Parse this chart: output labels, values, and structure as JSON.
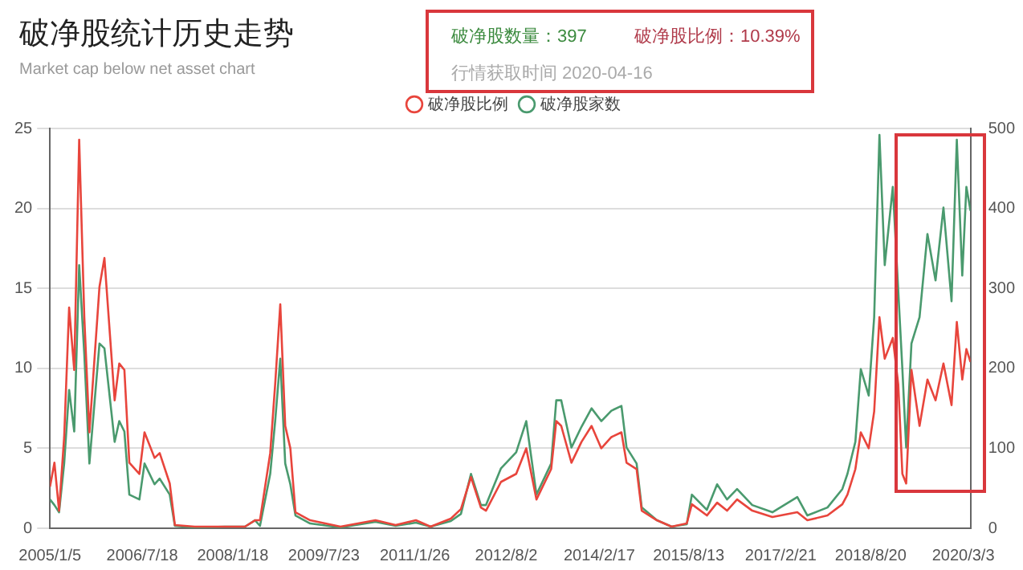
{
  "chart_data": {
    "type": "line",
    "title": "破净股统计历史走势",
    "subtitle": "Market cap below net asset chart",
    "annotations": [
      "破净股数量：397",
      "破净股比例：10.39%",
      "行情获取时间  2020-04-16"
    ],
    "x": [
      "2005-01-05",
      "2005-02",
      "2005-03",
      "2005-04",
      "2005-05",
      "2005-06",
      "2005-07",
      "2005-08",
      "2005-09",
      "2005-11",
      "2005-12",
      "2006-02",
      "2006-03",
      "2006-04",
      "2006-05",
      "2006-07",
      "2006-08",
      "2006-10",
      "2006-11",
      "2007-01",
      "2007-02",
      "2007-06",
      "2007-12",
      "2008-04",
      "2008-06",
      "2008-07",
      "2008-09",
      "2008-10",
      "2008-11",
      "2008-12",
      "2009-01",
      "2009-02",
      "2009-05",
      "2009-11",
      "2010-06",
      "2010-10",
      "2011-02",
      "2011-05",
      "2011-09",
      "2011-11",
      "2012-01",
      "2012-03",
      "2012-04",
      "2012-07",
      "2012-10",
      "2012-12",
      "2013-02",
      "2013-05",
      "2013-06",
      "2013-07",
      "2013-09",
      "2013-11",
      "2014-01",
      "2014-03",
      "2014-05",
      "2014-07",
      "2014-08",
      "2014-10",
      "2014-11",
      "2015-02",
      "2015-05",
      "2015-08",
      "2015-09",
      "2015-12",
      "2016-02",
      "2016-04",
      "2016-06",
      "2016-09",
      "2017-01",
      "2017-06",
      "2017-08",
      "2017-12",
      "2018-03",
      "2018-04",
      "2018-05-19",
      "2018-06-21",
      "2018-08-08",
      "2018-09-10",
      "2018-10-12",
      "2018-11-13",
      "2019-01-01",
      "2019-02-03",
      "2019-02-28",
      "2019-03-23",
      "2019-04-24",
      "2019-06-12",
      "2019-07-30",
      "2019-09-17",
      "2019-11-04",
      "2019-12-23",
      "2020-01-24",
      "2020-02-26",
      "2020-03-22",
      "2020-04-16"
    ],
    "series": [
      {
        "name": "破净股比例",
        "color": "#e8453c",
        "values": [
          2.6,
          4.1,
          1.1,
          5.7,
          13.8,
          9.9,
          24.3,
          13.2,
          6,
          15.1,
          16.9,
          8,
          10.3,
          9.9,
          4.1,
          3.4,
          6,
          4.4,
          4.7,
          2.8,
          0.2,
          0.1,
          0.1,
          0.1,
          0.5,
          0.5,
          4.7,
          9,
          14,
          6.4,
          5,
          1,
          0.5,
          0.1,
          0.5,
          0.2,
          0.5,
          0.1,
          0.6,
          1.2,
          3.2,
          1.3,
          1.1,
          2.9,
          3.4,
          5,
          1.8,
          3.7,
          6.7,
          6.4,
          4.1,
          5.4,
          6.4,
          5,
          5.7,
          6,
          4.1,
          3.7,
          1.1,
          0.5,
          0.1,
          0.3,
          1.5,
          0.8,
          1.6,
          1.1,
          1.8,
          1.1,
          0.7,
          1,
          0.5,
          0.8,
          1.5,
          2.1,
          3.7,
          6,
          5,
          7.3,
          13.2,
          10.6,
          11.9,
          9,
          3.4,
          2.8,
          9.9,
          6.4,
          9.3,
          8,
          10.3,
          7.7,
          12.9,
          9.3,
          11.2,
          10.4
        ]
      },
      {
        "name": "破净股家数",
        "color": "#4a9a6e",
        "axis": "y2",
        "values": [
          36,
          29,
          20,
          81,
          173,
          121,
          329,
          218,
          81,
          231,
          225,
          108,
          134,
          121,
          42,
          36,
          81,
          55,
          62,
          42,
          3,
          1,
          2,
          2,
          10,
          3,
          68,
          134,
          212,
          81,
          55,
          16,
          6,
          1,
          8,
          3,
          7,
          2,
          9,
          18,
          68,
          29,
          29,
          75,
          95,
          134,
          42,
          81,
          160,
          160,
          101,
          127,
          150,
          134,
          147,
          153,
          101,
          81,
          26,
          10,
          2,
          5,
          42,
          23,
          55,
          36,
          49,
          29,
          20,
          39,
          16,
          26,
          49,
          68,
          108,
          199,
          166,
          264,
          492,
          329,
          427,
          297,
          199,
          101,
          231,
          264,
          368,
          310,
          401,
          284,
          486,
          316,
          427,
          397
        ]
      }
    ],
    "xlim": [
      "2005-01-05",
      "2020-04-16"
    ],
    "xticks": [
      {
        "value": "2005-01-05",
        "label": "2005/1/5"
      },
      {
        "value": "2006-07-18",
        "label": "2006/7/18"
      },
      {
        "value": "2008-01-18",
        "label": "2008/1/18"
      },
      {
        "value": "2009-07-23",
        "label": "2009/7/23"
      },
      {
        "value": "2011-01-26",
        "label": "2011/1/26"
      },
      {
        "value": "2012-08-02",
        "label": "2012/8/2"
      },
      {
        "value": "2014-02-17",
        "label": "2014/2/17"
      },
      {
        "value": "2015-08-13",
        "label": "2015/8/13"
      },
      {
        "value": "2017-02-21",
        "label": "2017/2/21"
      },
      {
        "value": "2018-08-20",
        "label": "2018/8/20"
      },
      {
        "value": "2020-03-03",
        "label": "2020/3/3"
      }
    ],
    "ylim": [
      0,
      25
    ],
    "yticks": [
      0,
      5,
      10,
      15,
      20,
      25
    ],
    "y2lim": [
      0,
      500
    ],
    "y2ticks": [
      0,
      100,
      200,
      300,
      400,
      500
    ],
    "grid": "y",
    "legend": "top",
    "marker": "none",
    "line_style": "solid"
  }
}
